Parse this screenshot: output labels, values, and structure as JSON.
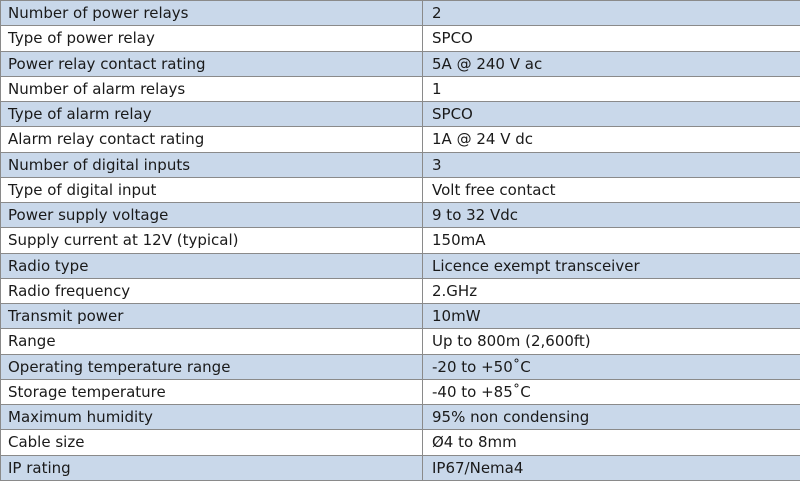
{
  "colors": {
    "row_shaded": "#c9d8ea",
    "row_plain": "#ffffff",
    "border": "#8a8a8a",
    "text": "#1a1a1a"
  },
  "specs": [
    {
      "label": "Number of power relays",
      "value": "2"
    },
    {
      "label": "Type of power relay",
      "value": "SPCO"
    },
    {
      "label": "Power relay contact rating",
      "value": "5A @ 240 V ac"
    },
    {
      "label": "Number of alarm relays",
      "value": "1"
    },
    {
      "label": "Type of alarm relay",
      "value": "SPCO"
    },
    {
      "label": "Alarm relay contact rating",
      "value": "1A @ 24 V dc"
    },
    {
      "label": "Number of digital inputs",
      "value": "3"
    },
    {
      "label": "Type of digital input",
      "value": "Volt free contact"
    },
    {
      "label": "Power supply voltage",
      "value": "9 to 32 Vdc"
    },
    {
      "label": "Supply current at 12V (typical)",
      "value": "150mA"
    },
    {
      "label": "Radio type",
      "value": "Licence exempt transceiver"
    },
    {
      "label": "Radio frequency",
      "value": "2.GHz"
    },
    {
      "label": "Transmit power",
      "value": "10mW"
    },
    {
      "label": "Range",
      "value": "Up to 800m (2,600ft)"
    },
    {
      "label": "Operating temperature range",
      "value": "-20 to +50˚C"
    },
    {
      "label": "Storage temperature",
      "value": "-40 to +85˚C"
    },
    {
      "label": "Maximum humidity",
      "value": "95% non condensing"
    },
    {
      "label": "Cable size",
      "value": "Ø4 to 8mm"
    },
    {
      "label": "IP rating",
      "value": "IP67/Nema4"
    }
  ]
}
